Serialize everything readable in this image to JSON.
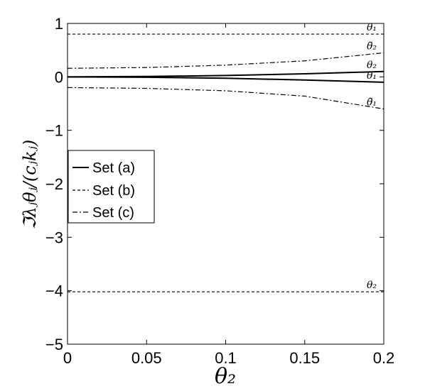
{
  "chart_data": {
    "type": "line",
    "xlabel": "θ₂",
    "ylabel": "ℑλⱼθⱼ/(cⱼkⱼ)",
    "xlim": [
      0,
      0.2
    ],
    "ylim": [
      -5,
      1
    ],
    "xticks": [
      0,
      0.05,
      0.1,
      0.15,
      0.2
    ],
    "xtick_labels": [
      "0",
      "0.05",
      "0.1",
      "0.15",
      "0.2"
    ],
    "yticks": [
      1,
      0,
      -1,
      -2,
      -3,
      -4,
      -5
    ],
    "ytick_labels": [
      "1",
      "0",
      "−1",
      "−2",
      "−3",
      "−4",
      "−5"
    ],
    "grid": false,
    "legend_position": "middle-left",
    "series": [
      {
        "name": "Set (a)",
        "style": "solid",
        "label": "θ₂",
        "x": [
          0,
          0.05,
          0.1,
          0.15,
          0.2
        ],
        "y": [
          0,
          0.007,
          0.026,
          0.058,
          0.1
        ]
      },
      {
        "name": "Set (a)",
        "style": "solid",
        "label": "θ₁",
        "x": [
          0,
          0.05,
          0.1,
          0.15,
          0.2
        ],
        "y": [
          0,
          -0.007,
          -0.026,
          -0.058,
          -0.1
        ]
      },
      {
        "name": "Set (b)",
        "style": "dashed",
        "label": "θ₁",
        "x": [
          0,
          0.05,
          0.1,
          0.15,
          0.2
        ],
        "y": [
          0.8,
          0.8,
          0.8,
          0.8,
          0.8
        ]
      },
      {
        "name": "Set (b)",
        "style": "dashed",
        "label": "θ₂",
        "x": [
          0,
          0.05,
          0.1,
          0.15,
          0.2
        ],
        "y": [
          -4.02,
          -4.02,
          -4.02,
          -4.02,
          -4.02
        ]
      },
      {
        "name": "Set (c)",
        "style": "dashdot",
        "label": "θ̃₂",
        "x": [
          0,
          0.05,
          0.1,
          0.15,
          0.2
        ],
        "y": [
          0.16,
          0.175,
          0.22,
          0.3,
          0.45
        ]
      },
      {
        "name": "Set (c)",
        "style": "dashdot",
        "label": "θ̃₁",
        "x": [
          0,
          0.05,
          0.1,
          0.15,
          0.2
        ],
        "y": [
          -0.2,
          -0.215,
          -0.26,
          -0.36,
          -0.6
        ]
      }
    ],
    "legend": [
      "Set (a)",
      "Set (b)",
      "Set (c)"
    ]
  }
}
